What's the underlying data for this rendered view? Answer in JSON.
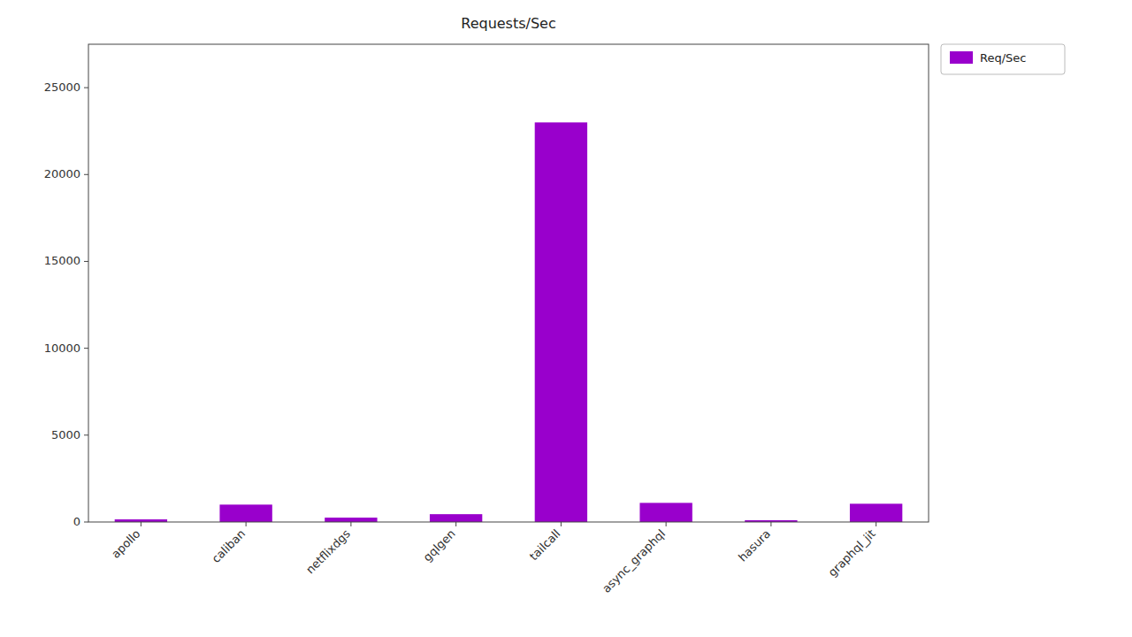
{
  "chart_data": {
    "type": "bar",
    "title": "Requests/Sec",
    "categories": [
      "apollo",
      "caliban",
      "netflixdgs",
      "gqlgen",
      "tailcall",
      "async_graphql",
      "hasura",
      "graphql_jit"
    ],
    "series": [
      {
        "name": "Req/Sec",
        "color": "#9900CC",
        "values": [
          150,
          1000,
          250,
          450,
          23000,
          1100,
          100,
          1050
        ]
      }
    ],
    "ylim": [
      0,
      27500
    ],
    "yticks": [
      0,
      5000,
      10000,
      15000,
      20000,
      25000
    ],
    "grid": false,
    "legend": "upper right"
  }
}
